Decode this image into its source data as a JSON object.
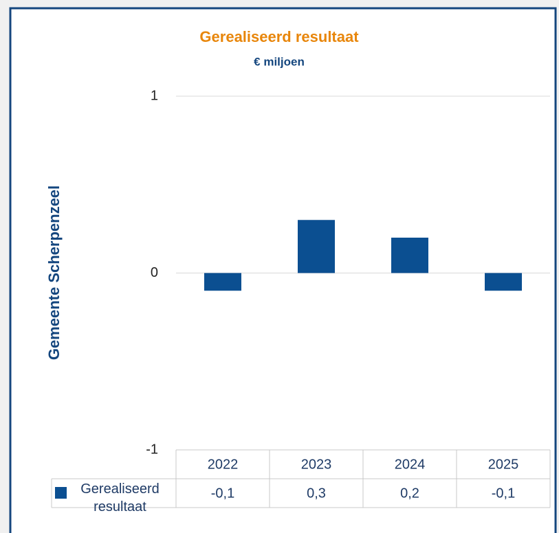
{
  "chart_data": {
    "type": "bar",
    "title": "Gerealiseerd resultaat",
    "subtitle": "€ miljoen",
    "y_label": "Gemeente Scherpenzeel",
    "categories": [
      "2022",
      "2023",
      "2024",
      "2025"
    ],
    "series": [
      {
        "name": "Gerealiseerd resultaat",
        "color": "#0b4f91",
        "values": [
          -0.1,
          0.3,
          0.2,
          -0.1
        ],
        "value_labels": [
          "-0,1",
          "0,3",
          "0,2",
          "-0,1"
        ]
      }
    ],
    "ylim": [
      -1,
      1
    ],
    "yticks": [
      -1,
      0,
      1
    ],
    "grid": true
  }
}
